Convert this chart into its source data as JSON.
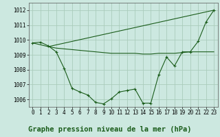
{
  "title": "Graphe pression niveau de la mer (hPa)",
  "bg_color": "#cce8e0",
  "grid_color": "#aaccbb",
  "line_color": "#1a5c1a",
  "xlim": [
    -0.5,
    23.5
  ],
  "ylim": [
    1005.5,
    1012.5
  ],
  "yticks": [
    1006,
    1007,
    1008,
    1009,
    1010,
    1011,
    1012
  ],
  "xticks": [
    0,
    1,
    2,
    3,
    4,
    5,
    6,
    7,
    8,
    9,
    10,
    11,
    12,
    13,
    14,
    15,
    16,
    17,
    18,
    19,
    20,
    21,
    22,
    23
  ],
  "series1_x": [
    0,
    1,
    2,
    3,
    4,
    5,
    6,
    7,
    8,
    9,
    10,
    11,
    12,
    13,
    14,
    15,
    16,
    17,
    18,
    19,
    20,
    21,
    22,
    23
  ],
  "series1_y": [
    1009.8,
    1009.85,
    1009.6,
    1009.2,
    1008.1,
    1006.75,
    1006.5,
    1006.3,
    1005.8,
    1005.7,
    1006.05,
    1006.5,
    1006.6,
    1006.7,
    1005.75,
    1005.75,
    1007.65,
    1008.85,
    1008.25,
    1009.2,
    1009.2,
    1009.9,
    1011.2,
    1012.0
  ],
  "series2_x": [
    0,
    2,
    23
  ],
  "series2_y": [
    1009.8,
    1009.55,
    1012.0
  ],
  "series3_x": [
    2,
    3,
    4,
    5,
    6,
    7,
    8,
    9,
    10,
    11,
    12,
    13,
    14,
    15,
    16,
    17,
    18,
    19,
    20,
    21,
    22,
    23
  ],
  "series3_y": [
    1009.55,
    1009.45,
    1009.4,
    1009.35,
    1009.3,
    1009.25,
    1009.2,
    1009.15,
    1009.1,
    1009.1,
    1009.1,
    1009.1,
    1009.05,
    1009.05,
    1009.1,
    1009.1,
    1009.1,
    1009.15,
    1009.2,
    1009.2,
    1009.2,
    1009.2
  ],
  "title_fontsize": 7.5,
  "tick_fontsize": 5.5
}
